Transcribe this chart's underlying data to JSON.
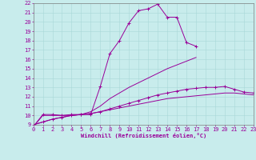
{
  "xlabel": "Windchill (Refroidissement éolien,°C)",
  "bg_color": "#c8ecec",
  "line_color": "#990099",
  "xlim": [
    0,
    23
  ],
  "ylim": [
    9,
    22
  ],
  "xticks": [
    0,
    1,
    2,
    3,
    4,
    5,
    6,
    7,
    8,
    9,
    10,
    11,
    12,
    13,
    14,
    15,
    16,
    17,
    18,
    19,
    20,
    21,
    22,
    23
  ],
  "yticks": [
    9,
    10,
    11,
    12,
    13,
    14,
    15,
    16,
    17,
    18,
    19,
    20,
    21,
    22
  ],
  "series": [
    {
      "x": [
        0,
        1,
        2,
        3,
        4,
        5,
        6,
        7,
        8,
        9,
        10,
        11,
        12,
        13,
        14,
        15,
        16,
        17
      ],
      "y": [
        8.8,
        10.1,
        10.1,
        10.0,
        10.1,
        10.1,
        10.1,
        13.1,
        16.6,
        18.0,
        19.9,
        21.2,
        21.4,
        21.9,
        20.5,
        20.5,
        17.8,
        17.4
      ],
      "marker": true
    },
    {
      "x": [
        0,
        1,
        2,
        3,
        4,
        5,
        6,
        7,
        8,
        9,
        10,
        11,
        12,
        13,
        14,
        15,
        16,
        17
      ],
      "y": [
        8.8,
        10.0,
        10.0,
        10.0,
        10.0,
        10.1,
        10.4,
        11.0,
        11.8,
        12.4,
        13.0,
        13.5,
        14.0,
        14.5,
        15.0,
        15.4,
        15.8,
        16.2
      ],
      "marker": false
    },
    {
      "x": [
        0,
        1,
        2,
        3,
        4,
        5,
        6,
        7,
        8,
        9,
        10,
        11,
        12,
        13,
        14,
        15,
        16,
        17,
        18,
        19,
        20,
        21,
        22,
        23
      ],
      "y": [
        9.0,
        9.3,
        9.6,
        9.8,
        10.0,
        10.1,
        10.2,
        10.4,
        10.6,
        10.8,
        11.0,
        11.2,
        11.4,
        11.6,
        11.8,
        11.9,
        12.0,
        12.1,
        12.2,
        12.3,
        12.4,
        12.4,
        12.3,
        12.2
      ],
      "marker": false
    },
    {
      "x": [
        0,
        1,
        2,
        3,
        4,
        5,
        6,
        7,
        8,
        9,
        10,
        11,
        12,
        13,
        14,
        15,
        16,
        17,
        18,
        19,
        20,
        21,
        22,
        23
      ],
      "y": [
        9.0,
        9.3,
        9.6,
        9.8,
        10.0,
        10.1,
        10.2,
        10.4,
        10.7,
        11.0,
        11.3,
        11.6,
        11.9,
        12.2,
        12.4,
        12.6,
        12.8,
        12.9,
        13.0,
        13.0,
        13.1,
        12.8,
        12.5,
        12.4
      ],
      "marker": true
    }
  ]
}
